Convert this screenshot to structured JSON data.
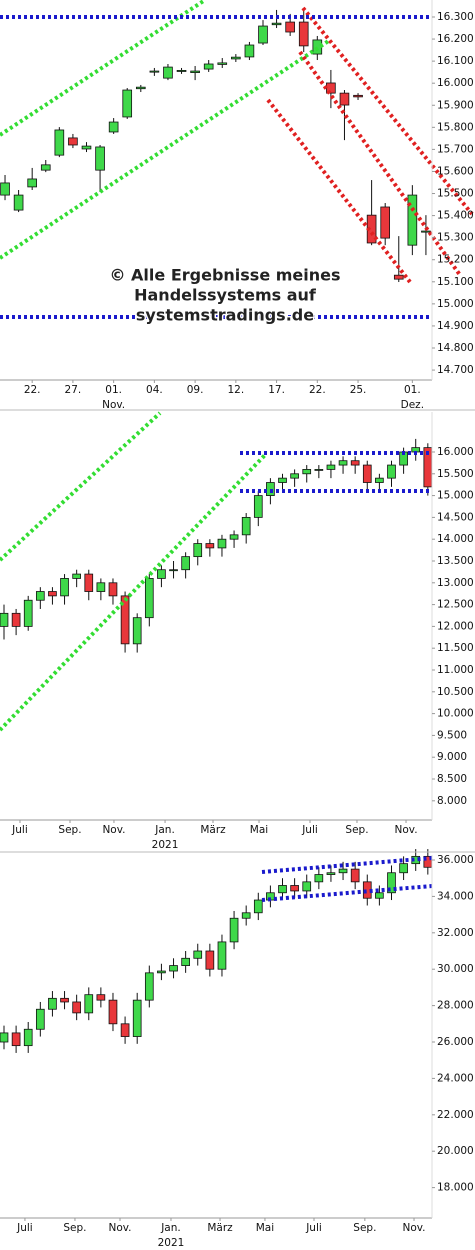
{
  "chart_data": [
    {
      "type": "candlestick",
      "up_color": "#3fd84a",
      "down_color": "#e8373b",
      "annotations": [
        "© Alle Ergebnisse meines",
        "Handelssystems auf",
        "systemstradings.de"
      ],
      "open": [
        15493,
        15425,
        15530,
        15606,
        15674,
        15752,
        15702,
        15606,
        15779,
        15847,
        15975,
        16050,
        16023,
        16053,
        16048,
        16064,
        16085,
        16110,
        16119,
        16182,
        16265,
        16277,
        16277,
        16132,
        16001,
        15955,
        15945,
        15402,
        15439,
        15130,
        15266,
        15325
      ],
      "high": [
        15584,
        15516,
        15616,
        15652,
        15801,
        15770,
        15733,
        15720,
        15842,
        15978,
        15992,
        16069,
        16087,
        16069,
        16078,
        16105,
        16114,
        16132,
        16187,
        16286,
        16332,
        16314,
        16332,
        16214,
        16060,
        15969,
        15955,
        15561,
        15457,
        15307,
        15538,
        15402
      ],
      "low": [
        15470,
        15416,
        15516,
        15597,
        15665,
        15706,
        15688,
        15507,
        15770,
        15838,
        15960,
        16033,
        16014,
        16042,
        16014,
        16051,
        16069,
        16096,
        16105,
        16173,
        16250,
        16214,
        16141,
        16105,
        15887,
        15742,
        15924,
        15266,
        15266,
        15099,
        15221,
        15221
      ],
      "close": [
        15548,
        15493,
        15566,
        15630,
        15788,
        15720,
        15715,
        15711,
        15824,
        15969,
        15982,
        16055,
        16073,
        16058,
        16055,
        16087,
        16092,
        16118,
        16173,
        16259,
        16272,
        16232,
        16169,
        16196,
        15955,
        15901,
        15938,
        15276,
        15298,
        15112,
        15493,
        15330
      ],
      "xlim": [
        -0.37,
        31.3
      ],
      "ylim": [
        14655,
        16377
      ],
      "xticks": [
        {
          "value": 2,
          "label": "22."
        },
        {
          "value": 5,
          "label": "27."
        },
        {
          "value": 8,
          "label": "01."
        },
        {
          "value": 11,
          "label": "04."
        },
        {
          "value": 14,
          "label": "09."
        },
        {
          "value": 17,
          "label": "12."
        },
        {
          "value": 20,
          "label": "17."
        },
        {
          "value": 23,
          "label": "22."
        },
        {
          "value": 26,
          "label": "25."
        },
        {
          "value": 30,
          "label": "01."
        }
      ],
      "period_labels": [
        {
          "value": 8,
          "label": "Nov."
        },
        {
          "value": 30,
          "label": "Dez."
        }
      ],
      "yticks": [
        {
          "value": 16300,
          "label": "16.300"
        },
        {
          "value": 16200,
          "label": "16.200"
        },
        {
          "value": 16100,
          "label": "16.100"
        },
        {
          "value": 16000,
          "label": "16.000"
        },
        {
          "value": 15900,
          "label": "15.900"
        },
        {
          "value": 15800,
          "label": "15.800"
        },
        {
          "value": 15700,
          "label": "15.700"
        },
        {
          "value": 15600,
          "label": "15.600"
        },
        {
          "value": 15500,
          "label": "15.500"
        },
        {
          "value": 15400,
          "label": "15.400"
        },
        {
          "value": 15300,
          "label": "15.300"
        },
        {
          "value": 15200,
          "label": "15.200"
        },
        {
          "value": 15100,
          "label": "15.100"
        },
        {
          "value": 15000,
          "label": "15.000"
        },
        {
          "value": 14900,
          "label": "14.900"
        },
        {
          "value": 14800,
          "label": "14.800"
        },
        {
          "value": 14700,
          "label": "14.700"
        }
      ]
    },
    {
      "type": "candlestick",
      "up_color": "#3fd84a",
      "down_color": "#e8373b",
      "open": [
        12000,
        12300,
        12000,
        12600,
        12800,
        12700,
        13100,
        13200,
        12800,
        13000,
        12700,
        11600,
        12200,
        13100,
        13300,
        13300,
        13600,
        13900,
        13800,
        14000,
        14100,
        14500,
        15000,
        15300,
        15400,
        15500,
        15600,
        15600,
        15700,
        15800,
        15700,
        15300,
        15400,
        15700,
        16000,
        16100
      ],
      "high": [
        12500,
        12400,
        12700,
        12900,
        12900,
        13200,
        13300,
        13300,
        13100,
        13100,
        12800,
        12300,
        13200,
        13400,
        13500,
        13700,
        14000,
        14000,
        14100,
        14200,
        14600,
        15100,
        15400,
        15500,
        15600,
        15700,
        15700,
        15800,
        15900,
        15900,
        15800,
        15500,
        15800,
        16100,
        16300,
        16200
      ],
      "low": [
        11700,
        11800,
        11900,
        12400,
        12500,
        12500,
        12900,
        12600,
        12600,
        12500,
        11400,
        11400,
        12000,
        12900,
        13100,
        13100,
        13400,
        13600,
        13600,
        13800,
        13900,
        14300,
        14800,
        15100,
        15200,
        15300,
        15400,
        15400,
        15500,
        15500,
        15100,
        15100,
        15200,
        15500,
        15800,
        15000
      ],
      "close": [
        12300,
        12000,
        12600,
        12800,
        12700,
        13100,
        13200,
        12800,
        13000,
        12700,
        11600,
        12200,
        13100,
        13300,
        13300,
        13600,
        13900,
        13800,
        14000,
        14100,
        14500,
        15000,
        15300,
        15400,
        15500,
        15600,
        15600,
        15700,
        15800,
        15700,
        15300,
        15400,
        15700,
        16000,
        16100,
        15200
      ],
      "xlim": [
        -0.33,
        35.18
      ],
      "ylim": [
        7560,
        16917
      ],
      "xticks": [
        {
          "value": 1.32,
          "label": "Juli"
        },
        {
          "value": 5.45,
          "label": "Sep."
        },
        {
          "value": 9.08,
          "label": "Nov."
        },
        {
          "value": 13.3,
          "label": "Jan."
        },
        {
          "value": 17.26,
          "label": "März"
        },
        {
          "value": 21.06,
          "label": "Mai"
        },
        {
          "value": 25.27,
          "label": "Juli"
        },
        {
          "value": 29.15,
          "label": "Sep."
        },
        {
          "value": 33.2,
          "label": "Nov."
        }
      ],
      "period_labels": [
        {
          "value": 13.3,
          "label": "2021"
        }
      ],
      "yticks": [
        {
          "value": 16000,
          "label": "16.000"
        },
        {
          "value": 15500,
          "label": "15.500"
        },
        {
          "value": 15000,
          "label": "15.000"
        },
        {
          "value": 14500,
          "label": "14.500"
        },
        {
          "value": 14000,
          "label": "14.000"
        },
        {
          "value": 13500,
          "label": "13.500"
        },
        {
          "value": 13000,
          "label": "13.000"
        },
        {
          "value": 12500,
          "label": "12.500"
        },
        {
          "value": 12000,
          "label": "12.000"
        },
        {
          "value": 11500,
          "label": "11.500"
        },
        {
          "value": 11000,
          "label": "11.000"
        },
        {
          "value": 10500,
          "label": "10.500"
        },
        {
          "value": 10000,
          "label": "10.000"
        },
        {
          "value": 9500,
          "label": "9.500"
        },
        {
          "value": 9000,
          "label": "9.000"
        },
        {
          "value": 8500,
          "label": "8.500"
        },
        {
          "value": 8000,
          "label": "8.000"
        }
      ]
    },
    {
      "type": "candlestick",
      "up_color": "#3fd84a",
      "down_color": "#e8373b",
      "open": [
        26000,
        26500,
        25800,
        26700,
        27800,
        28400,
        28200,
        27600,
        28600,
        28300,
        27000,
        26300,
        28300,
        29800,
        29900,
        30200,
        30600,
        31000,
        30000,
        31500,
        32800,
        33100,
        33800,
        34200,
        34600,
        34300,
        34800,
        35200,
        35300,
        35500,
        34800,
        33900,
        34200,
        35300,
        35800,
        36200
      ],
      "high": [
        26900,
        26900,
        27100,
        28200,
        28800,
        28800,
        28600,
        29000,
        29000,
        28700,
        27400,
        28700,
        30200,
        30300,
        30600,
        31000,
        31400,
        31400,
        31900,
        33200,
        33500,
        34200,
        34600,
        35000,
        35000,
        35200,
        35600,
        35700,
        35900,
        35900,
        35200,
        34600,
        35700,
        36200,
        36600,
        36600
      ],
      "low": [
        25600,
        25400,
        25400,
        26300,
        27400,
        27800,
        27200,
        27200,
        27900,
        26600,
        25900,
        25900,
        27900,
        29400,
        29500,
        29800,
        30200,
        29600,
        29600,
        31100,
        32400,
        32700,
        33400,
        33800,
        33900,
        33900,
        34400,
        34800,
        34900,
        34400,
        33500,
        33500,
        33800,
        34900,
        35400,
        35200
      ],
      "close": [
        26500,
        25800,
        26700,
        27800,
        28400,
        28200,
        27600,
        28600,
        28300,
        27000,
        26300,
        28300,
        29800,
        29900,
        30200,
        30600,
        31000,
        30000,
        31500,
        32800,
        33100,
        33800,
        34200,
        34600,
        34300,
        34800,
        35200,
        35300,
        35500,
        34800,
        33900,
        34200,
        35300,
        35800,
        36200,
        35600
      ],
      "xlim": [
        -0.33,
        35.18
      ],
      "ylim": [
        16330,
        36275
      ],
      "xticks": [
        {
          "value": 1.73,
          "label": "Juli"
        },
        {
          "value": 5.86,
          "label": "Sep."
        },
        {
          "value": 9.58,
          "label": "Nov."
        },
        {
          "value": 13.79,
          "label": "Jan."
        },
        {
          "value": 17.84,
          "label": "März"
        },
        {
          "value": 21.55,
          "label": "Mai"
        },
        {
          "value": 25.6,
          "label": "Juli"
        },
        {
          "value": 29.8,
          "label": "Sep."
        },
        {
          "value": 33.86,
          "label": "Nov."
        }
      ],
      "period_labels": [
        {
          "value": 13.79,
          "label": "2021"
        }
      ],
      "yticks": [
        {
          "value": 36000,
          "label": "36.000"
        },
        {
          "value": 34000,
          "label": "34.000"
        },
        {
          "value": 32000,
          "label": "32.000"
        },
        {
          "value": 30000,
          "label": "30.000"
        },
        {
          "value": 28000,
          "label": "28.000"
        },
        {
          "value": 26000,
          "label": "26.000"
        },
        {
          "value": 24000,
          "label": "24.000"
        },
        {
          "value": 22000,
          "label": "22.000"
        },
        {
          "value": 20000,
          "label": "20.000"
        },
        {
          "value": 18000,
          "label": "18.000"
        }
      ]
    }
  ]
}
